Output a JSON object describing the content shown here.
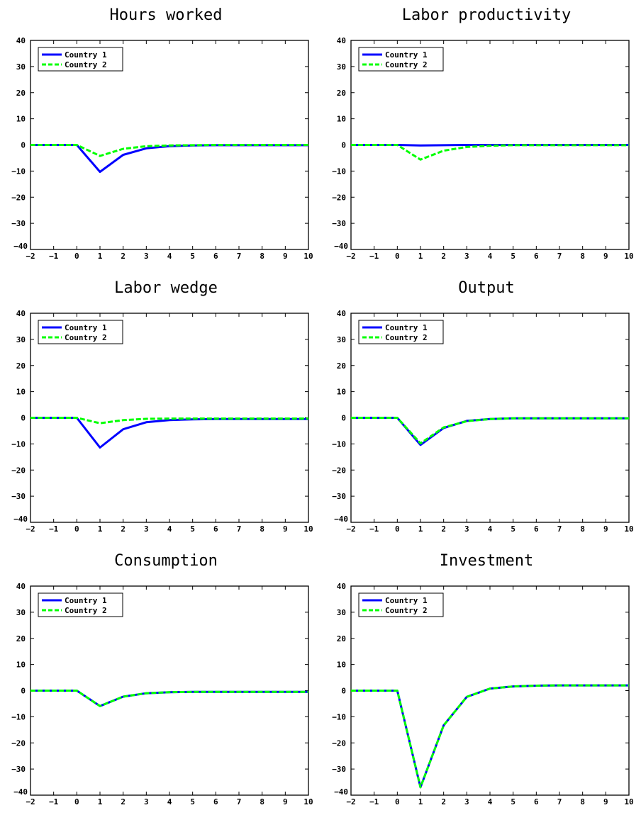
{
  "chart_data": [
    {
      "type": "line",
      "title": "Hours worked",
      "xlabel": "",
      "ylabel": "",
      "xlim": [
        -2,
        10
      ],
      "ylim": [
        -40,
        40
      ],
      "x": [
        -2,
        -1,
        0,
        1,
        2,
        3,
        4,
        5,
        6,
        7,
        8,
        9,
        10
      ],
      "xticks": [
        "−2",
        "−1",
        "0",
        "1",
        "2",
        "3",
        "4",
        "5",
        "6",
        "7",
        "8",
        "9",
        "10"
      ],
      "yticks": [
        "40",
        "30",
        "20",
        "10",
        "0",
        "−10",
        "−20",
        "−30",
        "−40"
      ],
      "legend": "top-left",
      "grid": false,
      "series": [
        {
          "name": "Country 1",
          "color": "#0000ff",
          "style": "solid",
          "values": [
            0,
            0,
            0,
            -10.3,
            -3.8,
            -1.3,
            -0.5,
            -0.2,
            -0.1,
            -0.1,
            -0.1,
            -0.1,
            -0.1
          ]
        },
        {
          "name": "Country 2",
          "color": "#00ff00",
          "style": "dashed",
          "values": [
            0,
            0,
            0,
            -4.2,
            -1.5,
            -0.5,
            -0.2,
            -0.1,
            0,
            0,
            0,
            0,
            0
          ]
        }
      ]
    },
    {
      "type": "line",
      "title": "Labor productivity",
      "xlabel": "",
      "ylabel": "",
      "xlim": [
        -2,
        10
      ],
      "ylim": [
        -40,
        40
      ],
      "x": [
        -2,
        -1,
        0,
        1,
        2,
        3,
        4,
        5,
        6,
        7,
        8,
        9,
        10
      ],
      "xticks": [
        "−2",
        "−1",
        "0",
        "1",
        "2",
        "3",
        "4",
        "5",
        "6",
        "7",
        "8",
        "9",
        "10"
      ],
      "yticks": [
        "40",
        "30",
        "20",
        "10",
        "0",
        "−10",
        "−20",
        "−30",
        "−40"
      ],
      "legend": "top-left",
      "grid": false,
      "series": [
        {
          "name": "Country 1",
          "color": "#0000ff",
          "style": "solid",
          "values": [
            0,
            0,
            0,
            -0.2,
            -0.1,
            0,
            0,
            0,
            0,
            0,
            0,
            0,
            0
          ]
        },
        {
          "name": "Country 2",
          "color": "#00ff00",
          "style": "dashed",
          "values": [
            0,
            0,
            0,
            -5.6,
            -2.2,
            -0.8,
            -0.3,
            -0.1,
            -0.1,
            -0.1,
            -0.1,
            -0.1,
            -0.1
          ]
        }
      ]
    },
    {
      "type": "line",
      "title": "Labor wedge",
      "xlabel": "",
      "ylabel": "",
      "xlim": [
        -2,
        10
      ],
      "ylim": [
        -40,
        40
      ],
      "x": [
        -2,
        -1,
        0,
        1,
        2,
        3,
        4,
        5,
        6,
        7,
        8,
        9,
        10
      ],
      "xticks": [
        "−2",
        "−1",
        "0",
        "1",
        "2",
        "3",
        "4",
        "5",
        "6",
        "7",
        "8",
        "9",
        "10"
      ],
      "yticks": [
        "40",
        "30",
        "20",
        "10",
        "0",
        "−10",
        "−20",
        "−30",
        "−40"
      ],
      "legend": "top-left",
      "grid": false,
      "series": [
        {
          "name": "Country 1",
          "color": "#0000ff",
          "style": "solid",
          "values": [
            0,
            0,
            0,
            -11.4,
            -4.4,
            -1.7,
            -0.9,
            -0.6,
            -0.5,
            -0.5,
            -0.5,
            -0.5,
            -0.5
          ]
        },
        {
          "name": "Country 2",
          "color": "#00ff00",
          "style": "dashed",
          "values": [
            0,
            0,
            0,
            -2.1,
            -0.9,
            -0.4,
            -0.3,
            -0.3,
            -0.3,
            -0.3,
            -0.3,
            -0.3,
            -0.3
          ]
        }
      ]
    },
    {
      "type": "line",
      "title": "Output",
      "xlabel": "",
      "ylabel": "",
      "xlim": [
        -2,
        10
      ],
      "ylim": [
        -40,
        40
      ],
      "x": [
        -2,
        -1,
        0,
        1,
        2,
        3,
        4,
        5,
        6,
        7,
        8,
        9,
        10
      ],
      "xticks": [
        "−2",
        "−1",
        "0",
        "1",
        "2",
        "3",
        "4",
        "5",
        "6",
        "7",
        "8",
        "9",
        "10"
      ],
      "yticks": [
        "40",
        "30",
        "20",
        "10",
        "0",
        "−10",
        "−20",
        "−30",
        "−40"
      ],
      "legend": "top-left",
      "grid": false,
      "series": [
        {
          "name": "Country 1",
          "color": "#0000ff",
          "style": "solid",
          "values": [
            0,
            0,
            0,
            -10.4,
            -3.9,
            -1.2,
            -0.5,
            -0.2,
            -0.2,
            -0.2,
            -0.2,
            -0.2,
            -0.2
          ]
        },
        {
          "name": "Country 2",
          "color": "#00ff00",
          "style": "dashed",
          "values": [
            0,
            0,
            0,
            -9.8,
            -3.7,
            -1.3,
            -0.5,
            -0.2,
            -0.2,
            -0.2,
            -0.2,
            -0.2,
            -0.2
          ]
        }
      ]
    },
    {
      "type": "line",
      "title": "Consumption",
      "xlabel": "",
      "ylabel": "",
      "xlim": [
        -2,
        10
      ],
      "ylim": [
        -40,
        40
      ],
      "x": [
        -2,
        -1,
        0,
        1,
        2,
        3,
        4,
        5,
        6,
        7,
        8,
        9,
        10
      ],
      "xticks": [
        "−2",
        "−1",
        "0",
        "1",
        "2",
        "3",
        "4",
        "5",
        "6",
        "7",
        "8",
        "9",
        "10"
      ],
      "yticks": [
        "40",
        "30",
        "20",
        "10",
        "0",
        "−10",
        "−20",
        "−30",
        "−40"
      ],
      "legend": "top-left",
      "grid": false,
      "series": [
        {
          "name": "Country 1",
          "color": "#0000ff",
          "style": "solid",
          "values": [
            0,
            0,
            0,
            -5.9,
            -2.3,
            -1.0,
            -0.6,
            -0.5,
            -0.5,
            -0.5,
            -0.5,
            -0.5,
            -0.5
          ]
        },
        {
          "name": "Country 2",
          "color": "#00ff00",
          "style": "dashed",
          "values": [
            0,
            0,
            0,
            -5.9,
            -2.3,
            -1.0,
            -0.6,
            -0.5,
            -0.5,
            -0.5,
            -0.5,
            -0.5,
            -0.5
          ]
        }
      ]
    },
    {
      "type": "line",
      "title": "Investment",
      "xlabel": "",
      "ylabel": "",
      "xlim": [
        -2,
        10
      ],
      "ylim": [
        -40,
        40
      ],
      "x": [
        -2,
        -1,
        0,
        1,
        2,
        3,
        4,
        5,
        6,
        7,
        8,
        9,
        10
      ],
      "xticks": [
        "−2",
        "−1",
        "0",
        "1",
        "2",
        "3",
        "4",
        "5",
        "6",
        "7",
        "8",
        "9",
        "10"
      ],
      "yticks": [
        "40",
        "30",
        "20",
        "10",
        "0",
        "−10",
        "−20",
        "−30",
        "−40"
      ],
      "legend": "top-left",
      "grid": false,
      "series": [
        {
          "name": "Country 1",
          "color": "#0000ff",
          "style": "solid",
          "values": [
            0,
            0,
            0,
            -37.0,
            -13.3,
            -2.4,
            0.8,
            1.6,
            1.9,
            2.0,
            2.0,
            2.0,
            2.0
          ]
        },
        {
          "name": "Country 2",
          "color": "#00ff00",
          "style": "dashed",
          "values": [
            0,
            0,
            0,
            -37.0,
            -13.3,
            -2.4,
            0.8,
            1.6,
            1.9,
            2.0,
            2.0,
            2.0,
            2.0
          ]
        }
      ]
    }
  ]
}
